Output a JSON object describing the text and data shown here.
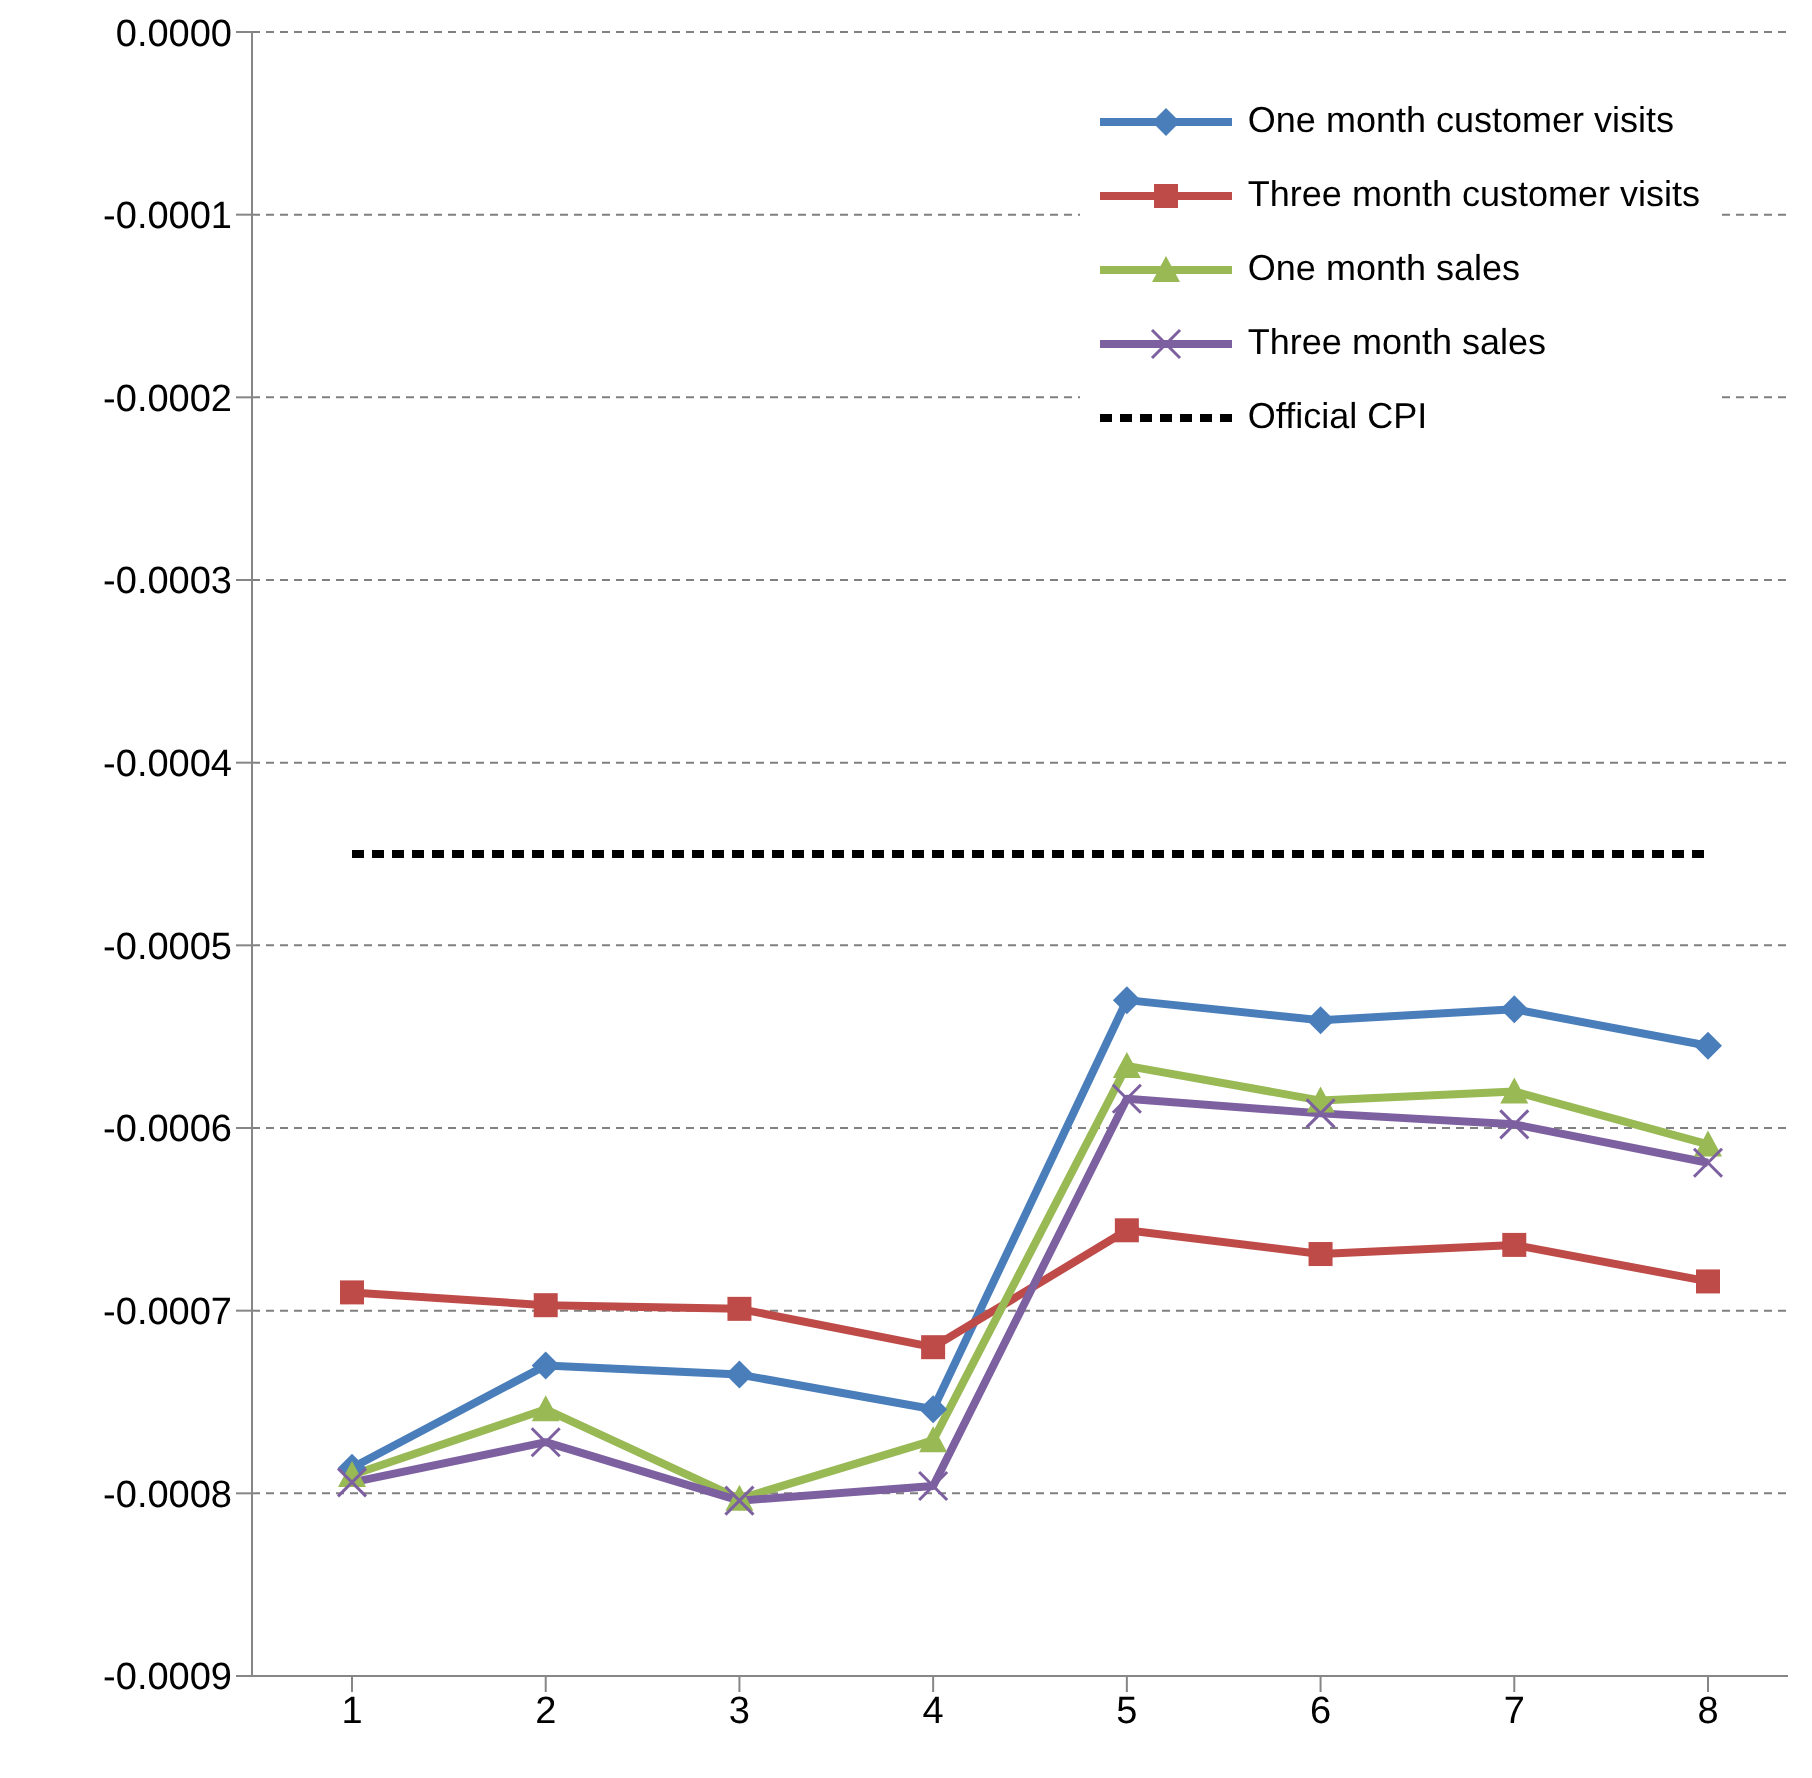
{
  "chart_data": {
    "type": "line",
    "categories": [
      "1",
      "2",
      "3",
      "4",
      "5",
      "6",
      "7",
      "8"
    ],
    "series": [
      {
        "name": "One month customer visits",
        "color": "#4a7ebb",
        "marker": "diamond",
        "values": [
          -0.000786,
          -0.00073,
          -0.000735,
          -0.000754,
          -0.00053,
          -0.000541,
          -0.000535,
          -0.000555
        ]
      },
      {
        "name": "Three month customer visits",
        "color": "#be4b48",
        "marker": "square",
        "values": [
          -0.00069,
          -0.000697,
          -0.000699,
          -0.00072,
          -0.000656,
          -0.000669,
          -0.000664,
          -0.000684
        ]
      },
      {
        "name": "One month sales",
        "color": "#98b954",
        "marker": "triangle",
        "values": [
          -0.00079,
          -0.000754,
          -0.000803,
          -0.000771,
          -0.000566,
          -0.000585,
          -0.00058,
          -0.000609
        ]
      },
      {
        "name": "Three month sales",
        "color": "#7d60a0",
        "marker": "cross",
        "values": [
          -0.000794,
          -0.000772,
          -0.000804,
          -0.000796,
          -0.000584,
          -0.000592,
          -0.000598,
          -0.000619
        ]
      },
      {
        "name": "Official CPI",
        "color": "#000000",
        "marker": "none",
        "line_style": "dashed",
        "values": [
          -0.00045,
          -0.00045,
          -0.00045,
          -0.00045,
          -0.00045,
          -0.00045,
          -0.00045,
          -0.00045
        ]
      }
    ],
    "ylim": [
      -0.0009,
      0
    ],
    "yticks": [
      {
        "value": 0,
        "label": "0.0000"
      },
      {
        "value": -0.0001,
        "label": "-0.0001"
      },
      {
        "value": -0.0002,
        "label": "-0.0002"
      },
      {
        "value": -0.0003,
        "label": "-0.0003"
      },
      {
        "value": -0.0004,
        "label": "-0.0004"
      },
      {
        "value": -0.0005,
        "label": "-0.0005"
      },
      {
        "value": -0.0006,
        "label": "-0.0006"
      },
      {
        "value": -0.0007,
        "label": "-0.0007"
      },
      {
        "value": -0.0008,
        "label": "-0.0008"
      },
      {
        "value": -0.0009,
        "label": "-0.0009"
      }
    ],
    "grid": "y",
    "legend": "top right"
  }
}
